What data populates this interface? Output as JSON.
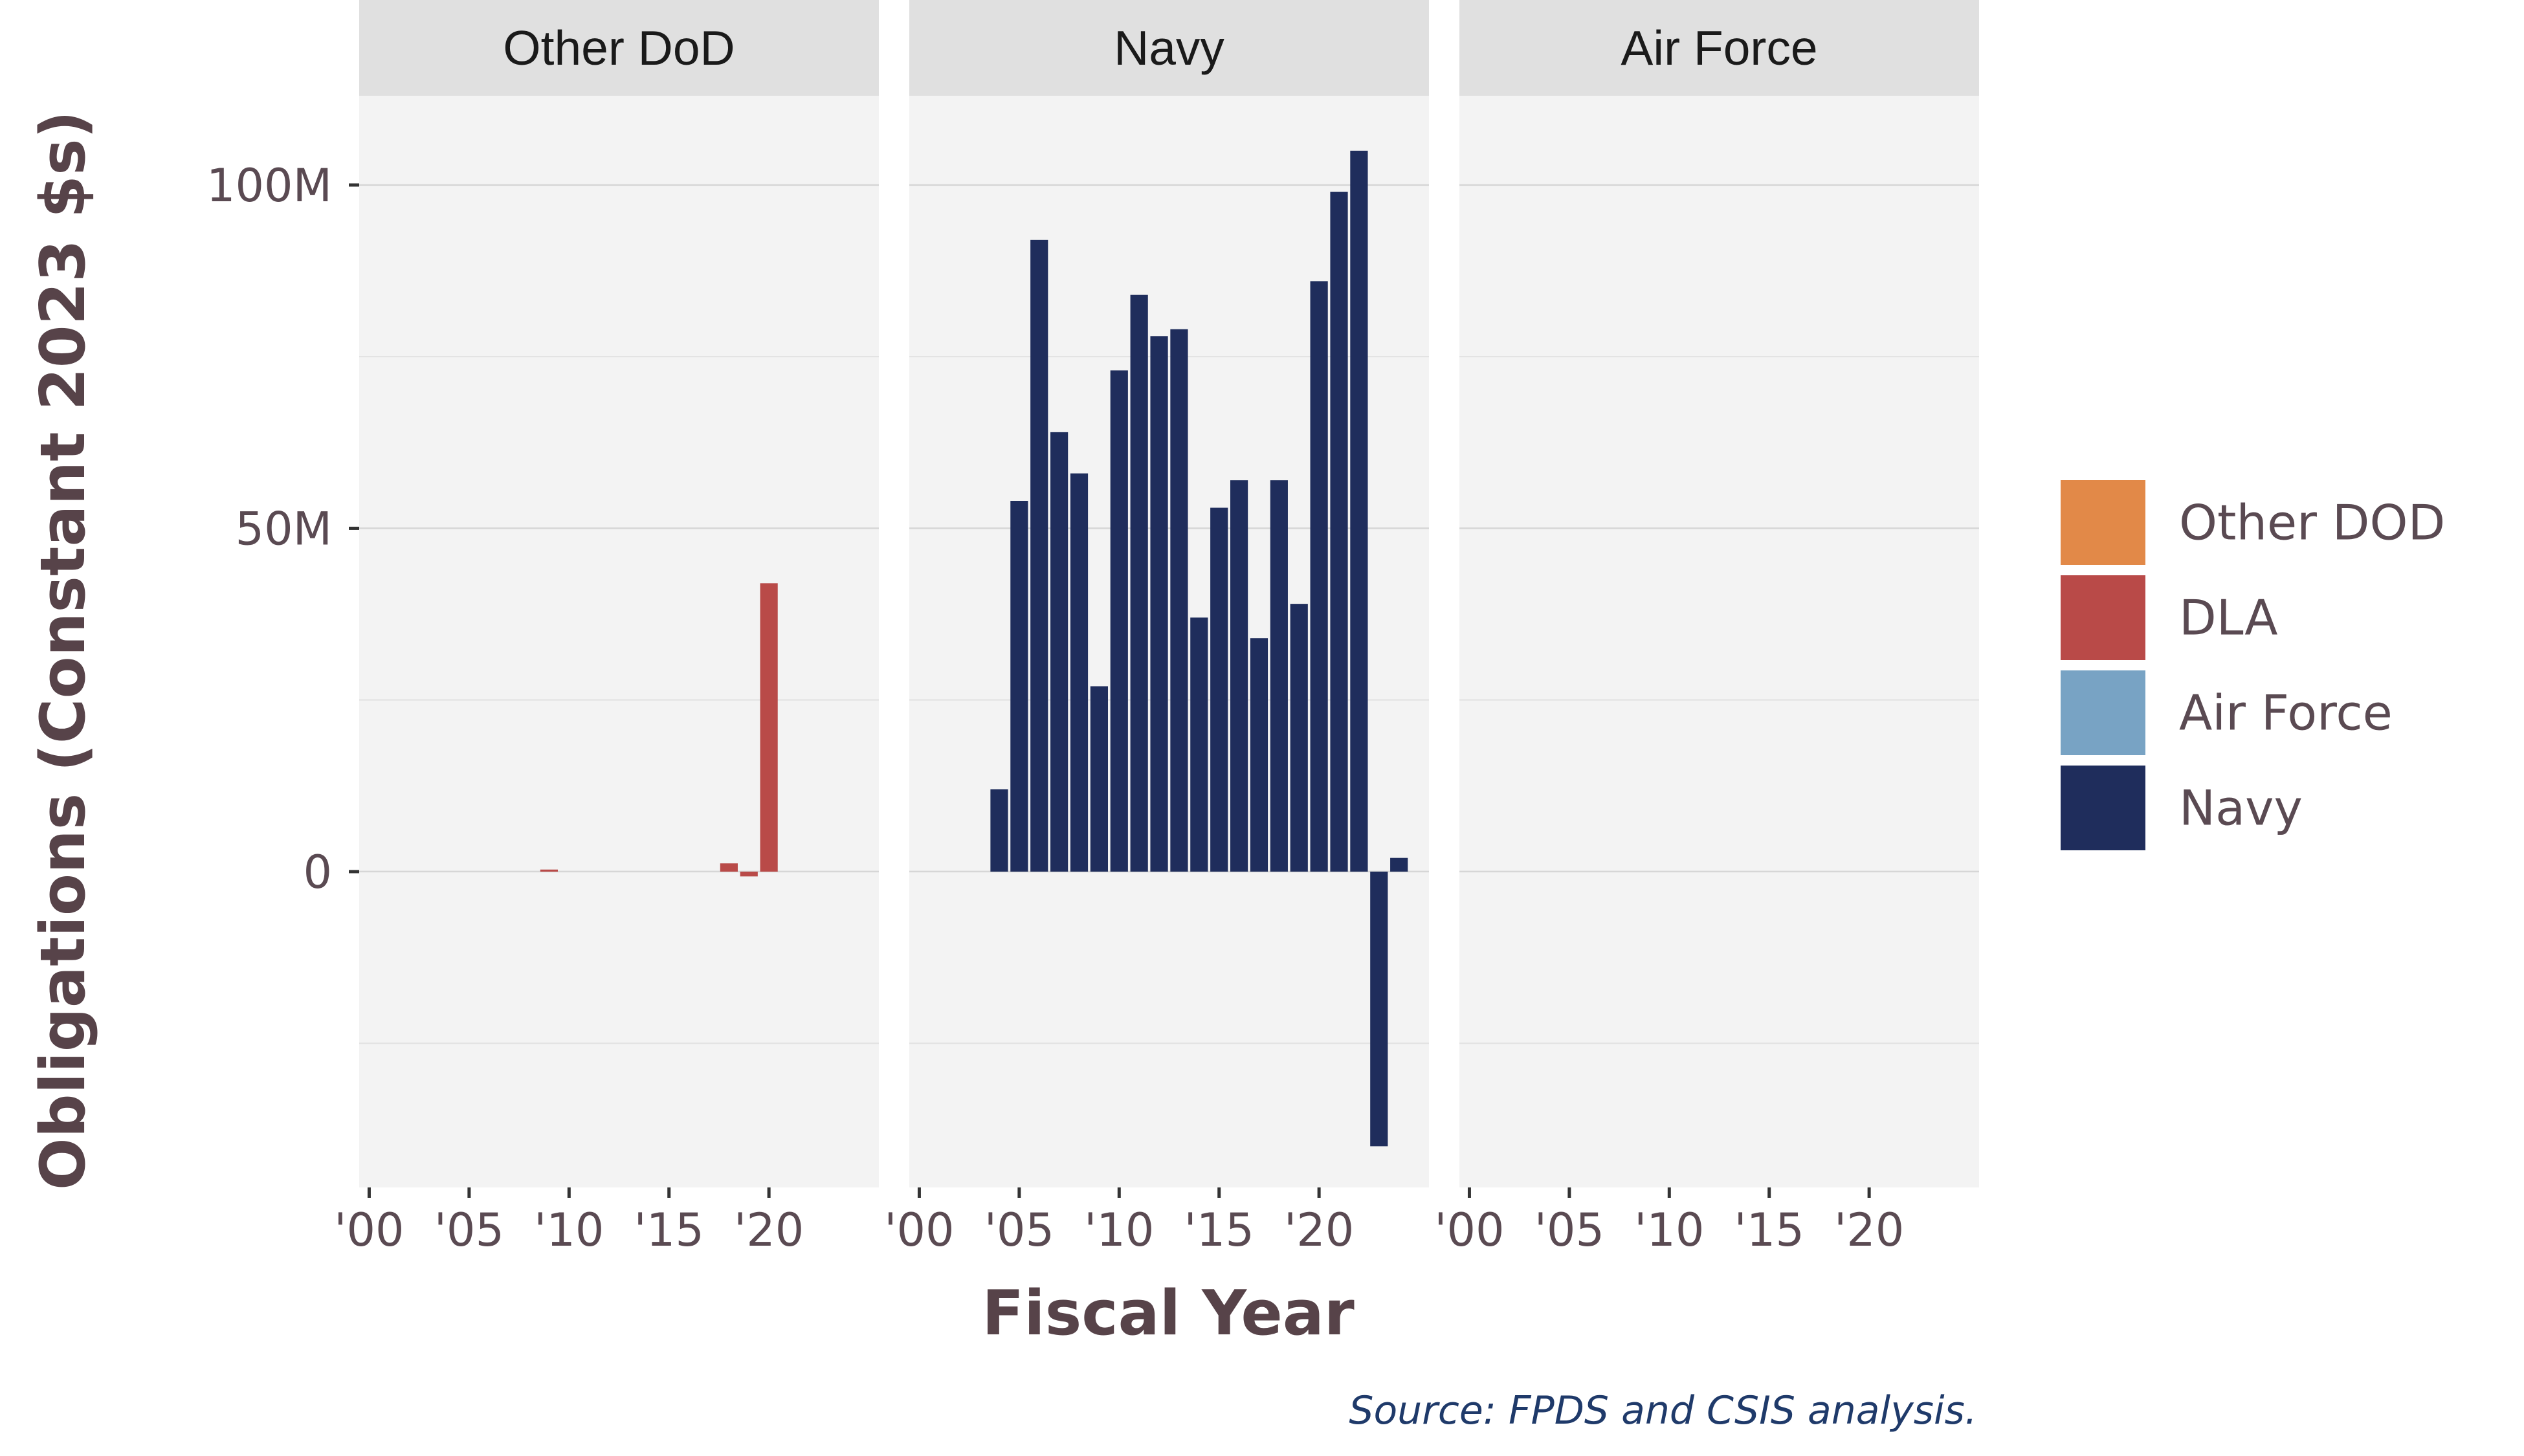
{
  "chart_data": {
    "type": "bar",
    "title": "",
    "xlabel": "Fiscal Year",
    "ylabel": "Obligations (Constant 2023 $s)",
    "caption": "Source: FPDS and CSIS analysis.",
    "ylim": [
      -46000000,
      113000000
    ],
    "xlim": [
      1999.5,
      2025.5
    ],
    "y_ticks": [
      {
        "value": 0,
        "label": "0"
      },
      {
        "value": 50000000,
        "label": "50M"
      },
      {
        "value": 100000000,
        "label": "100M"
      }
    ],
    "y_minor_ticks": [
      -25000000,
      25000000,
      75000000
    ],
    "x_ticks": [
      {
        "value": 2000,
        "label": "'00"
      },
      {
        "value": 2005,
        "label": "'05"
      },
      {
        "value": 2010,
        "label": "'10"
      },
      {
        "value": 2015,
        "label": "'15"
      },
      {
        "value": 2020,
        "label": "'20"
      }
    ],
    "grid": true,
    "legend": {
      "placement": "right",
      "entries": [
        {
          "name": "Other DOD",
          "color": "#E28948"
        },
        {
          "name": "DLA",
          "color": "#B94A48"
        },
        {
          "name": "Air Force",
          "color": "#78A3C4"
        },
        {
          "name": "Navy",
          "color": "#1F2D5C"
        }
      ]
    },
    "panels": [
      {
        "title": "Other DoD",
        "series": [
          {
            "name": "DLA",
            "color": "#B94A48",
            "points": [
              {
                "x": 2009,
                "y": 300000
              },
              {
                "x": 2018,
                "y": 1200000
              },
              {
                "x": 2019,
                "y": -700000
              },
              {
                "x": 2020,
                "y": 42000000
              }
            ]
          }
        ]
      },
      {
        "title": "Navy",
        "series": [
          {
            "name": "Navy",
            "color": "#1F2D5C",
            "points": [
              {
                "x": 2004,
                "y": 12000000
              },
              {
                "x": 2005,
                "y": 54000000
              },
              {
                "x": 2006,
                "y": 92000000
              },
              {
                "x": 2007,
                "y": 64000000
              },
              {
                "x": 2008,
                "y": 58000000
              },
              {
                "x": 2009,
                "y": 27000000
              },
              {
                "x": 2010,
                "y": 73000000
              },
              {
                "x": 2011,
                "y": 84000000
              },
              {
                "x": 2012,
                "y": 78000000
              },
              {
                "x": 2013,
                "y": 79000000
              },
              {
                "x": 2014,
                "y": 37000000
              },
              {
                "x": 2015,
                "y": 53000000
              },
              {
                "x": 2016,
                "y": 57000000
              },
              {
                "x": 2017,
                "y": 34000000
              },
              {
                "x": 2018,
                "y": 57000000
              },
              {
                "x": 2019,
                "y": 39000000
              },
              {
                "x": 2020,
                "y": 86000000
              },
              {
                "x": 2021,
                "y": 99000000
              },
              {
                "x": 2022,
                "y": 105000000
              },
              {
                "x": 2023,
                "y": -40000000
              },
              {
                "x": 2024,
                "y": 2000000
              }
            ]
          }
        ]
      },
      {
        "title": "Air Force",
        "series": [
          {
            "name": "Air Force",
            "color": "#78A3C4",
            "points": []
          }
        ]
      }
    ]
  }
}
